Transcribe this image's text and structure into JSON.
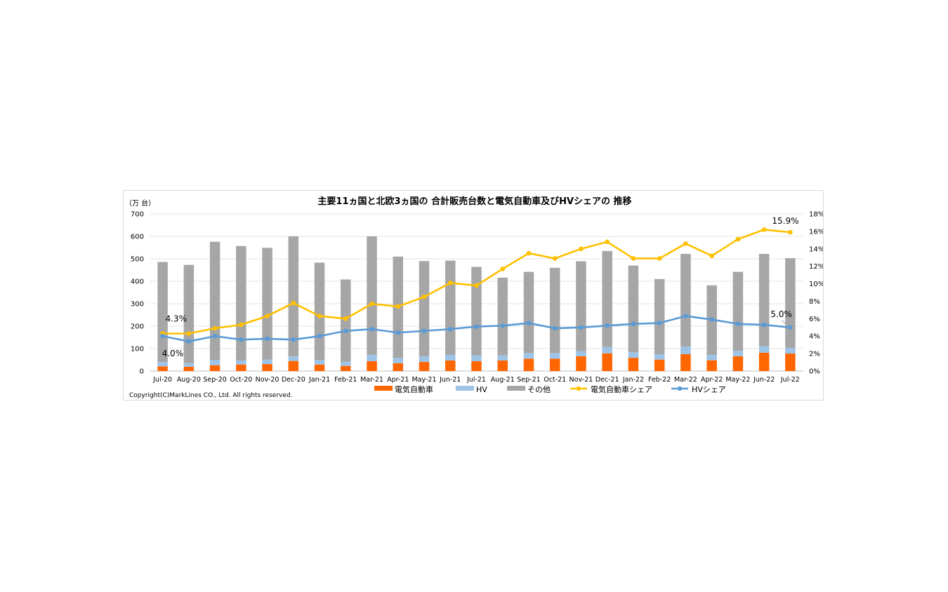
{
  "chart_data": {
    "type": "bar",
    "title": "主要11ヵ国と北欧3ヵ国の 合計販売台数と電気自動車及びHVシェアの 推移",
    "left_unit_label": "（万 台）",
    "copyright": "Copyright(C)MarkLines CO., Ltd. All rights reserved.",
    "categories": [
      "Jul-20",
      "Aug-20",
      "Sep-20",
      "Oct-20",
      "Nov-20",
      "Dec-20",
      "Jan-21",
      "Feb-21",
      "Mar-21",
      "Apr-21",
      "May-21",
      "Jun-21",
      "Jul-21",
      "Aug-21",
      "Sep-21",
      "Oct-21",
      "Nov-21",
      "Dec-21",
      "Jan-22",
      "Feb-22",
      "Mar-22",
      "Apr-22",
      "May-22",
      "Jun-22",
      "Jul-22"
    ],
    "left_axis": {
      "min": 0,
      "max": 700,
      "step": 100,
      "ticks": [
        "0",
        "100",
        "200",
        "300",
        "400",
        "500",
        "600",
        "700"
      ]
    },
    "right_axis": {
      "min": 0,
      "max": 18,
      "step": 2,
      "ticks": [
        "0%",
        "2%",
        "4%",
        "6%",
        "8%",
        "10%",
        "12%",
        "14%",
        "16%",
        "18%"
      ]
    },
    "stacked_series": [
      {
        "name": "電気自動車",
        "color": "#ff6600",
        "values": [
          21,
          19,
          26,
          29,
          31,
          45,
          29,
          23,
          44,
          35,
          41,
          47,
          44,
          47,
          55,
          55,
          66,
          79,
          59,
          51,
          75,
          48,
          66,
          82,
          78
        ]
      },
      {
        "name": "HV",
        "color": "#9dc3e6",
        "values": [
          19,
          16,
          24,
          18,
          20,
          20,
          20,
          18,
          29,
          24,
          24,
          25,
          26,
          23,
          25,
          25,
          23,
          28,
          25,
          24,
          34,
          24,
          24,
          29,
          25
        ]
      },
      {
        "name": "その他",
        "color": "#a6a6a6",
        "values": [
          446,
          438,
          526,
          510,
          498,
          535,
          434,
          367,
          527,
          451,
          425,
          420,
          394,
          346,
          362,
          380,
          400,
          428,
          386,
          335,
          413,
          310,
          352,
          411,
          400
        ]
      }
    ],
    "line_series": [
      {
        "name": "電気自動車シェア",
        "color": "#ffc000",
        "marker": "circle",
        "values": [
          4.3,
          4.3,
          4.9,
          5.3,
          6.3,
          7.8,
          6.3,
          6.0,
          7.7,
          7.4,
          8.5,
          10.1,
          9.8,
          11.7,
          13.5,
          12.9,
          14.0,
          14.8,
          12.9,
          12.9,
          14.6,
          13.2,
          15.1,
          16.2,
          15.9
        ]
      },
      {
        "name": "HVシェア",
        "color": "#5b9bd5",
        "marker": "circle",
        "values": [
          4.0,
          3.4,
          4.0,
          3.6,
          3.7,
          3.6,
          4.0,
          4.6,
          4.8,
          4.4,
          4.6,
          4.8,
          5.1,
          5.2,
          5.5,
          4.9,
          5.0,
          5.2,
          5.4,
          5.5,
          6.3,
          5.9,
          5.4,
          5.3,
          5.0
        ]
      }
    ],
    "annotations": [
      {
        "text": "4.3%",
        "series": 0,
        "index": 0
      },
      {
        "text": "4.0%",
        "series": 1,
        "index": 0
      },
      {
        "text": "15.9%",
        "series": 0,
        "index": 24
      },
      {
        "text": "5.0%",
        "series": 1,
        "index": 24
      }
    ],
    "grid": true,
    "legend_position": "bottom"
  }
}
